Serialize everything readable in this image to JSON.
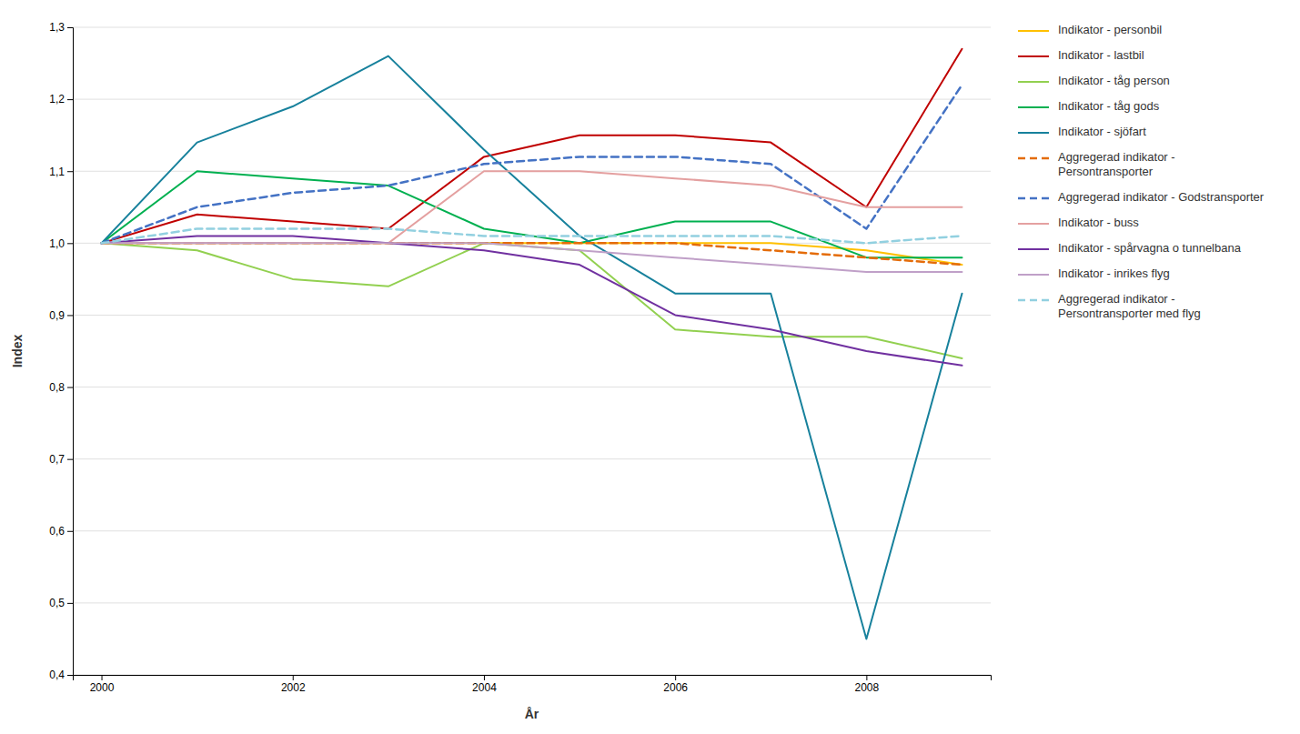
{
  "chart_data": {
    "type": "line",
    "xlabel": "År",
    "ylabel": "Index",
    "x": [
      2000,
      2001,
      2002,
      2003,
      2004,
      2005,
      2006,
      2007,
      2008,
      2009
    ],
    "xlim": [
      1999.7,
      2009.3
    ],
    "xticks": [
      2000,
      2002,
      2004,
      2006,
      2008
    ],
    "ylim": [
      0.4,
      1.3
    ],
    "yticks": [
      {
        "value": 0.4,
        "label": "0,4"
      },
      {
        "value": 0.5,
        "label": "0,5"
      },
      {
        "value": 0.6,
        "label": "0,6"
      },
      {
        "value": 0.7,
        "label": "0,7"
      },
      {
        "value": 0.8,
        "label": "0,8"
      },
      {
        "value": 0.9,
        "label": "0,9"
      },
      {
        "value": 1.0,
        "label": "1,0"
      },
      {
        "value": 1.1,
        "label": "1,1"
      },
      {
        "value": 1.2,
        "label": "1,2"
      },
      {
        "value": 1.3,
        "label": "1,3"
      }
    ],
    "grid": true,
    "legend": "right",
    "series": [
      {
        "name": "Indikator - personbil",
        "color": "#FFC000",
        "line_style": "solid",
        "values": [
          1.0,
          1.0,
          1.0,
          1.0,
          1.0,
          1.0,
          1.0,
          1.0,
          0.99,
          0.97
        ]
      },
      {
        "name": "Indikator - lastbil",
        "color": "#C00000",
        "line_style": "solid",
        "values": [
          1.0,
          1.04,
          1.03,
          1.02,
          1.12,
          1.15,
          1.15,
          1.14,
          1.05,
          1.27
        ]
      },
      {
        "name": "Indikator - tåg person",
        "color": "#92D050",
        "line_style": "solid",
        "values": [
          1.0,
          0.99,
          0.95,
          0.94,
          1.0,
          0.99,
          0.88,
          0.87,
          0.87,
          0.84
        ]
      },
      {
        "name": "Indikator - tåg gods",
        "color": "#00B050",
        "line_style": "solid",
        "values": [
          1.0,
          1.1,
          1.09,
          1.08,
          1.02,
          1.0,
          1.03,
          1.03,
          0.98,
          0.98
        ]
      },
      {
        "name": "Indikator - sjöfart",
        "color": "#17819C",
        "line_style": "solid",
        "values": [
          1.0,
          1.14,
          1.19,
          1.26,
          1.13,
          1.01,
          0.93,
          0.93,
          0.45,
          0.93
        ]
      },
      {
        "name": "Aggregerad indikator -\nPersontransporter",
        "color": "#E46C0A",
        "line_style": "dashed",
        "values": [
          1.0,
          1.0,
          1.0,
          1.0,
          1.0,
          1.0,
          1.0,
          0.99,
          0.98,
          0.97
        ]
      },
      {
        "name": "Aggregerad indikator - Godstransporter",
        "color": "#4472C4",
        "line_style": "dashed",
        "values": [
          1.0,
          1.05,
          1.07,
          1.08,
          1.11,
          1.12,
          1.12,
          1.11,
          1.02,
          1.22
        ]
      },
      {
        "name": "Indikator - buss",
        "color": "#E4A0A0",
        "line_style": "solid",
        "values": [
          1.0,
          1.0,
          1.0,
          1.0,
          1.1,
          1.1,
          1.09,
          1.08,
          1.05,
          1.05
        ]
      },
      {
        "name": "Indikator - spårvagna o tunnelbana",
        "color": "#7030A0",
        "line_style": "solid",
        "values": [
          1.0,
          1.01,
          1.01,
          1.0,
          0.99,
          0.97,
          0.9,
          0.88,
          0.85,
          0.83
        ]
      },
      {
        "name": "Indikator - inrikes flyg",
        "color": "#C0A0C8",
        "line_style": "solid",
        "values": [
          1.0,
          1.0,
          1.0,
          1.0,
          1.0,
          0.99,
          0.98,
          0.97,
          0.96,
          0.96
        ]
      },
      {
        "name": "Aggregerad indikator -\nPersontransporter med flyg",
        "color": "#92D0E0",
        "line_style": "dashed",
        "values": [
          1.0,
          1.02,
          1.02,
          1.02,
          1.01,
          1.01,
          1.01,
          1.01,
          1.0,
          1.01
        ]
      }
    ]
  }
}
